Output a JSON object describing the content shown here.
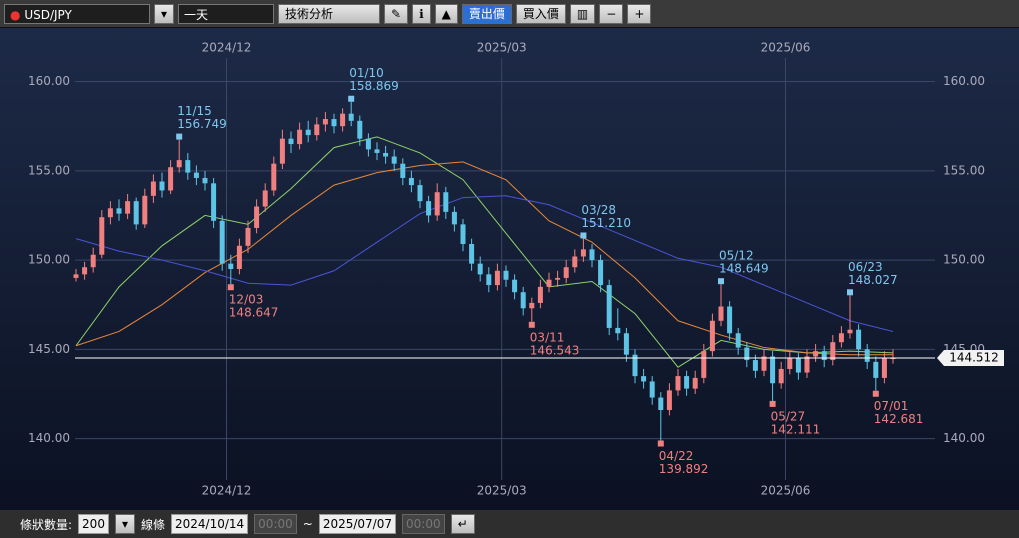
{
  "toolbar": {
    "symbol": "USD/JPY",
    "period": "一天",
    "analysis": "技術分析",
    "bid": "賣出價",
    "ask": "買入價"
  },
  "footer": {
    "bars_label": "條狀數量:",
    "bars": "200",
    "line_label": "線條",
    "from_date": "2024/10/14",
    "from_time": "00:00",
    "separator": "~",
    "to_date": "2025/07/07",
    "to_time": "00:00"
  },
  "chart_data": {
    "type": "candlestick",
    "ylim": [
      136,
      163
    ],
    "yticks": [
      {
        "value": 140,
        "label": "140.00"
      },
      {
        "value": 145,
        "label": "145.00"
      },
      {
        "value": 150,
        "label": "150.00"
      },
      {
        "value": 155,
        "label": "155.00"
      },
      {
        "value": 160,
        "label": "160.00"
      }
    ],
    "xlim": [
      -0.5,
      95.5
    ],
    "xticks": [
      {
        "value": 17.5,
        "label": "2024/12"
      },
      {
        "value": 49.5,
        "label": "2025/03"
      },
      {
        "value": 82.5,
        "label": "2025/06"
      }
    ],
    "up_color": "#f08080",
    "down_color": "#5ec4e6",
    "grid": true,
    "ohlc": [
      [
        149.0,
        149.5,
        148.8,
        149.2
      ],
      [
        149.2,
        149.9,
        148.9,
        149.6
      ],
      [
        149.6,
        150.7,
        149.3,
        150.3
      ],
      [
        150.3,
        152.8,
        150.1,
        152.4
      ],
      [
        152.4,
        153.3,
        152.0,
        152.9
      ],
      [
        152.9,
        153.4,
        152.2,
        152.6
      ],
      [
        152.6,
        153.7,
        152.3,
        153.3
      ],
      [
        153.3,
        153.5,
        151.7,
        152.0
      ],
      [
        152.0,
        154.0,
        151.8,
        153.6
      ],
      [
        153.6,
        154.8,
        153.2,
        154.4
      ],
      [
        154.4,
        154.9,
        153.5,
        153.9
      ],
      [
        153.9,
        155.6,
        153.7,
        155.2
      ],
      [
        155.2,
        156.749,
        154.9,
        155.6
      ],
      [
        155.6,
        156.0,
        154.5,
        154.9
      ],
      [
        154.9,
        155.3,
        154.2,
        154.6
      ],
      [
        154.6,
        155.0,
        153.9,
        154.3
      ],
      [
        154.3,
        154.6,
        151.8,
        152.2
      ],
      [
        152.2,
        152.5,
        149.4,
        149.8
      ],
      [
        149.8,
        150.3,
        148.647,
        149.5
      ],
      [
        149.5,
        151.2,
        149.2,
        150.8
      ],
      [
        150.8,
        152.2,
        150.4,
        151.8
      ],
      [
        151.8,
        153.4,
        151.5,
        153.0
      ],
      [
        153.0,
        154.3,
        152.7,
        153.9
      ],
      [
        153.9,
        155.8,
        153.6,
        155.4
      ],
      [
        155.4,
        157.3,
        155.1,
        156.8
      ],
      [
        156.8,
        157.2,
        156.0,
        156.5
      ],
      [
        156.5,
        157.7,
        156.2,
        157.3
      ],
      [
        157.3,
        157.8,
        156.6,
        157.0
      ],
      [
        157.0,
        158.0,
        156.7,
        157.6
      ],
      [
        157.6,
        158.3,
        157.2,
        157.9
      ],
      [
        157.9,
        158.2,
        157.1,
        157.5
      ],
      [
        157.5,
        158.5,
        157.2,
        158.2
      ],
      [
        158.2,
        158.869,
        157.5,
        157.8
      ],
      [
        157.8,
        158.1,
        156.4,
        156.8
      ],
      [
        156.8,
        157.1,
        155.8,
        156.2
      ],
      [
        156.2,
        156.6,
        155.6,
        156.0
      ],
      [
        156.0,
        156.4,
        155.4,
        155.8
      ],
      [
        155.8,
        156.2,
        155.0,
        155.4
      ],
      [
        155.4,
        155.7,
        154.2,
        154.6
      ],
      [
        154.6,
        155.0,
        153.8,
        154.2
      ],
      [
        154.2,
        154.5,
        152.9,
        153.3
      ],
      [
        153.3,
        153.6,
        152.1,
        152.5
      ],
      [
        152.5,
        154.3,
        152.2,
        153.8
      ],
      [
        153.8,
        154.1,
        152.3,
        152.7
      ],
      [
        152.7,
        153.0,
        151.6,
        152.0
      ],
      [
        152.0,
        152.3,
        150.5,
        150.9
      ],
      [
        150.9,
        151.2,
        149.4,
        149.8
      ],
      [
        149.8,
        150.2,
        148.8,
        149.2
      ],
      [
        149.2,
        149.6,
        148.2,
        148.6
      ],
      [
        148.6,
        149.8,
        148.3,
        149.4
      ],
      [
        149.4,
        149.7,
        148.5,
        148.9
      ],
      [
        148.9,
        149.2,
        147.8,
        148.2
      ],
      [
        148.2,
        148.5,
        146.9,
        147.3
      ],
      [
        147.3,
        147.9,
        146.543,
        147.6
      ],
      [
        147.6,
        148.9,
        147.3,
        148.5
      ],
      [
        148.5,
        149.3,
        148.2,
        148.9
      ],
      [
        148.9,
        149.4,
        148.5,
        149.0
      ],
      [
        149.0,
        150.0,
        148.7,
        149.6
      ],
      [
        149.6,
        150.6,
        149.3,
        150.2
      ],
      [
        150.2,
        151.21,
        149.9,
        150.6
      ],
      [
        150.6,
        150.9,
        149.6,
        150.0
      ],
      [
        150.0,
        150.3,
        148.2,
        148.6
      ],
      [
        148.6,
        148.9,
        145.8,
        146.2
      ],
      [
        146.2,
        147.3,
        145.5,
        145.9
      ],
      [
        145.9,
        146.2,
        144.3,
        144.7
      ],
      [
        144.7,
        145.0,
        143.1,
        143.5
      ],
      [
        143.5,
        143.9,
        142.8,
        143.2
      ],
      [
        143.2,
        143.5,
        141.9,
        142.3
      ],
      [
        142.3,
        142.6,
        139.892,
        141.6
      ],
      [
        141.6,
        143.1,
        141.3,
        142.7
      ],
      [
        142.7,
        143.9,
        142.4,
        143.5
      ],
      [
        143.5,
        143.8,
        142.4,
        142.8
      ],
      [
        142.8,
        143.8,
        142.5,
        143.4
      ],
      [
        143.4,
        145.3,
        143.1,
        144.9
      ],
      [
        144.9,
        147.0,
        144.6,
        146.6
      ],
      [
        146.6,
        148.649,
        146.3,
        147.4
      ],
      [
        147.4,
        147.7,
        145.5,
        145.9
      ],
      [
        145.9,
        146.2,
        144.7,
        145.1
      ],
      [
        145.1,
        145.4,
        144.0,
        144.4
      ],
      [
        144.4,
        144.7,
        143.4,
        143.8
      ],
      [
        143.8,
        145.0,
        143.5,
        144.6
      ],
      [
        144.6,
        144.9,
        142.111,
        143.1
      ],
      [
        143.1,
        144.3,
        142.8,
        143.9
      ],
      [
        143.9,
        144.9,
        143.6,
        144.5
      ],
      [
        144.5,
        144.8,
        143.3,
        143.7
      ],
      [
        143.7,
        145.0,
        143.4,
        144.6
      ],
      [
        144.6,
        145.3,
        144.3,
        144.9
      ],
      [
        144.9,
        145.2,
        144.0,
        144.4
      ],
      [
        144.4,
        145.8,
        144.1,
        145.4
      ],
      [
        145.4,
        146.3,
        145.1,
        145.9
      ],
      [
        145.9,
        148.027,
        145.6,
        146.1
      ],
      [
        146.1,
        146.4,
        144.6,
        145.0
      ],
      [
        145.0,
        145.3,
        143.9,
        144.3
      ],
      [
        144.3,
        144.6,
        142.681,
        143.4
      ],
      [
        143.4,
        144.9,
        143.1,
        144.5
      ],
      [
        144.5,
        145.0,
        144.2,
        144.512
      ]
    ],
    "ma_x": [
      0,
      5,
      10,
      15,
      20,
      25,
      30,
      35,
      40,
      45,
      50,
      55,
      60,
      65,
      70,
      75,
      80,
      85,
      90,
      95
    ],
    "moving_averages": [
      {
        "color": "#8fd46a",
        "values": [
          145.2,
          148.5,
          150.8,
          152.5,
          152.0,
          154.0,
          156.3,
          156.9,
          156.0,
          154.5,
          151.5,
          148.5,
          148.8,
          147.0,
          144.0,
          145.5,
          145.0,
          144.8,
          144.9,
          144.8
        ]
      },
      {
        "color": "#e8883a",
        "values": [
          145.2,
          146.0,
          147.5,
          149.3,
          150.6,
          152.5,
          154.2,
          154.9,
          155.3,
          155.5,
          154.5,
          152.2,
          151.0,
          149.0,
          146.6,
          145.8,
          145.1,
          144.8,
          144.7,
          144.7
        ]
      },
      {
        "color": "#4c55d8",
        "values": [
          151.2,
          150.5,
          150.0,
          149.4,
          148.7,
          148.6,
          149.4,
          151.0,
          152.6,
          153.5,
          153.6,
          153.1,
          152.1,
          151.1,
          150.1,
          149.6,
          148.6,
          147.6,
          146.6,
          146.0
        ]
      }
    ],
    "annotations": [
      {
        "kind": "high",
        "date": "11/15",
        "price": 156.749
      },
      {
        "kind": "low",
        "date": "12/03",
        "price": 148.647
      },
      {
        "kind": "high",
        "date": "01/10",
        "price": 158.869
      },
      {
        "kind": "low",
        "date": "03/11",
        "price": 146.543
      },
      {
        "kind": "high",
        "date": "03/28",
        "price": {
          "value": 151.21,
          "label": "151.210"
        }
      },
      {
        "kind": "low",
        "date": "04/22",
        "price": 139.892
      },
      {
        "kind": "high",
        "date": "05/12",
        "price": 148.649
      },
      {
        "kind": "low",
        "date": "05/27",
        "price": 142.111
      },
      {
        "kind": "high",
        "date": "06/23",
        "price": 148.027
      },
      {
        "kind": "low",
        "date": "07/01",
        "price": 142.681
      }
    ],
    "current_price": 144.512
  }
}
